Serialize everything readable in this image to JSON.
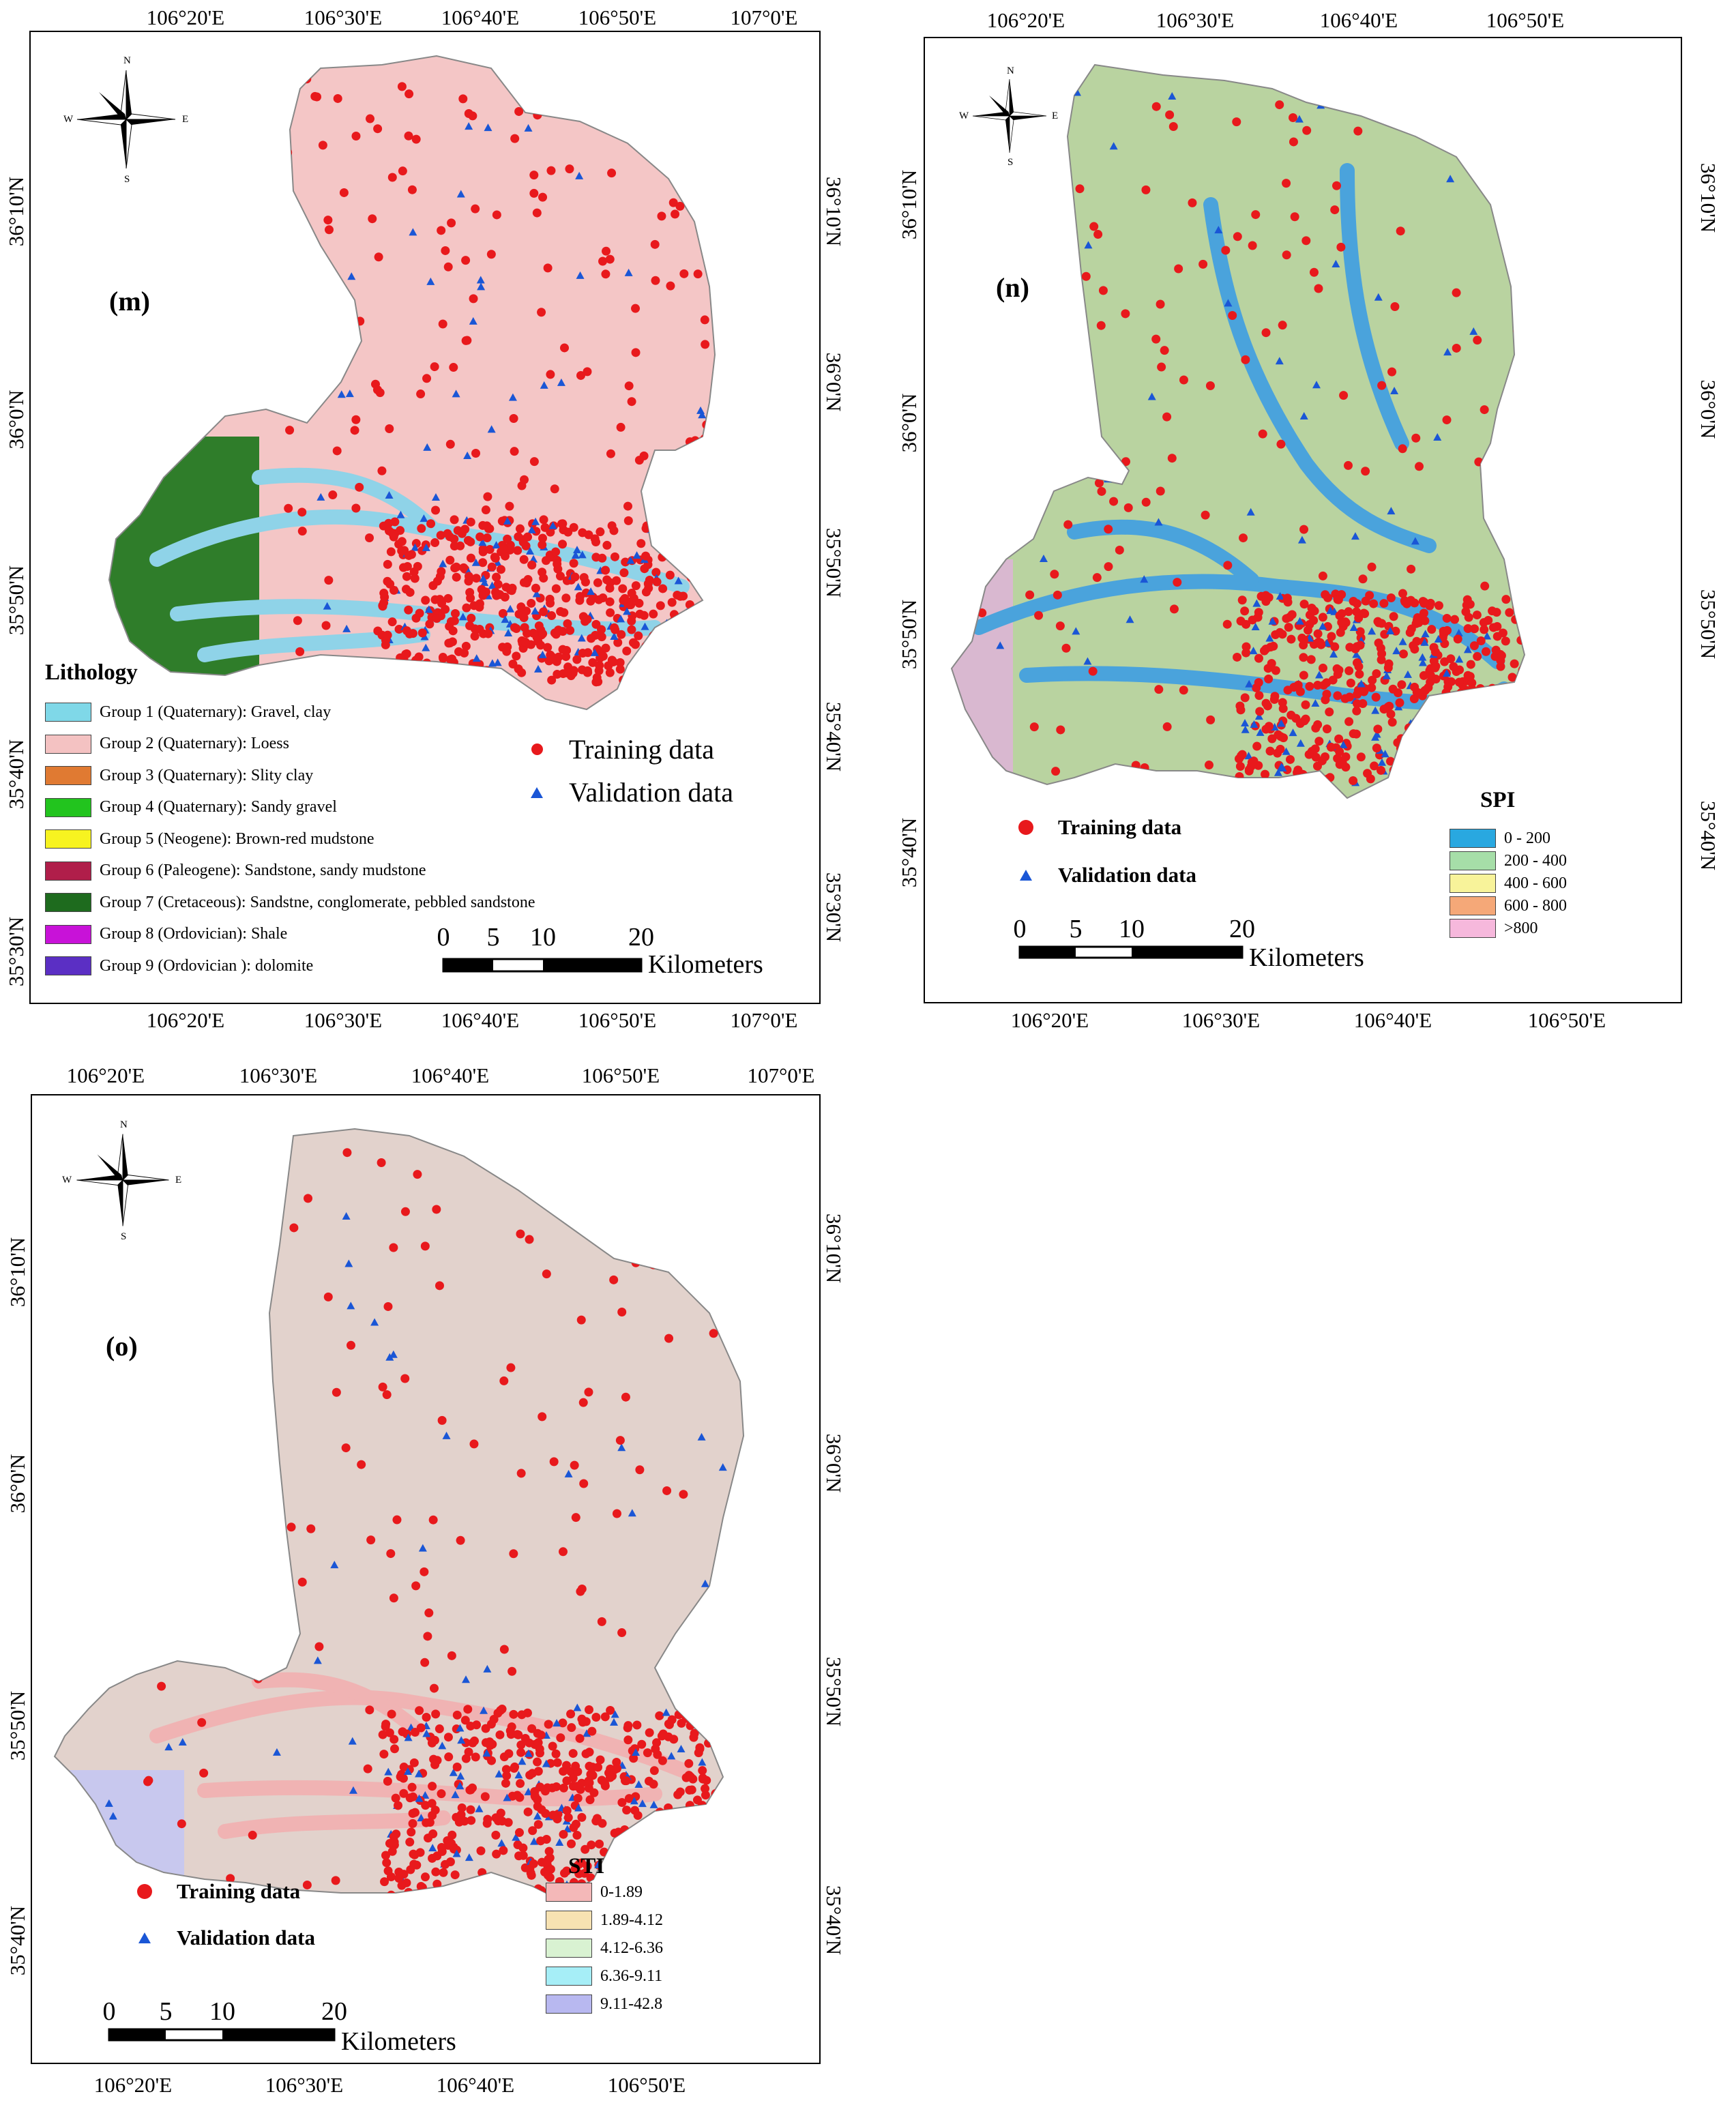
{
  "points_legend": {
    "training": "Training data",
    "validation": "Validation data"
  },
  "compass": {
    "n": "N",
    "s": "S",
    "e": "E",
    "w": "W"
  },
  "scale": {
    "ticks": [
      "0",
      "5",
      "10",
      "20"
    ],
    "unit": "Kilometers"
  },
  "panels": {
    "m": {
      "tag": "(m)",
      "lon": [
        "106°20'E",
        "106°30'E",
        "106°40'E",
        "106°50'E",
        "107°0'E"
      ],
      "lat": [
        "36°10'N",
        "36°0'N",
        "35°50'N",
        "35°40'N",
        "35°30'N"
      ],
      "legend_title": "Lithology",
      "legend": [
        {
          "label": "Group 1 (Quaternary): Gravel, clay",
          "color": "#7fd8e8"
        },
        {
          "label": "Group 2 (Quaternary): Loess",
          "color": "#f4c2c2"
        },
        {
          "label": "Group 3 (Quaternary): Slity clay",
          "color": "#e07a32"
        },
        {
          "label": "Group 4 (Quaternary): Sandy gravel",
          "color": "#22c41e"
        },
        {
          "label": "Group 5 (Neogene): Brown-red mudstone",
          "color": "#f7f320"
        },
        {
          "label": "Group 6 (Paleogene): Sandstone, sandy mudstone",
          "color": "#b01e4a"
        },
        {
          "label": "Group 7 (Cretaceous): Sandstne, conglomerate, pebbled sandstone",
          "color": "#1e6b1e"
        },
        {
          "label": "Group 8 (Ordovician): Shale",
          "color": "#c812d8"
        },
        {
          "label": "Group 9 (Ordovician ): dolomite",
          "color": "#5b2fc4"
        }
      ]
    },
    "n": {
      "tag": "(n)",
      "lon": [
        "106°20'E",
        "106°30'E",
        "106°40'E",
        "106°50'E"
      ],
      "lat": [
        "36°10'N",
        "36°0'N",
        "35°50'N",
        "35°40'N"
      ],
      "legend_title": "SPI",
      "legend": [
        {
          "label": "0 - 200",
          "color": "#29a8e0"
        },
        {
          "label": "200 - 400",
          "color": "#a6dea8"
        },
        {
          "label": "400 - 600",
          "color": "#f8f39a"
        },
        {
          "label": "600 - 800",
          "color": "#f5a878"
        },
        {
          "label": ">800",
          "color": "#f6b8dc"
        }
      ]
    },
    "o": {
      "tag": "(o)",
      "lon": [
        "106°20'E",
        "106°30'E",
        "106°40'E",
        "106°50'E",
        "107°0'E"
      ],
      "lat": [
        "36°10'N",
        "36°0'N",
        "35°50'N",
        "35°40'N"
      ],
      "legend_title": "STI",
      "legend": [
        {
          "label": "0-1.89",
          "color": "#f4b8b8"
        },
        {
          "label": "1.89-4.12",
          "color": "#f7e2b2"
        },
        {
          "label": "4.12-6.36",
          "color": "#d9f2d2"
        },
        {
          "label": "6.36-9.11",
          "color": "#a6eef7"
        },
        {
          "label": "9.11-42.8",
          "color": "#b8b8f0"
        }
      ]
    }
  },
  "colors": {
    "training": "#e8191c",
    "validation": "#1a56d6",
    "river": "#8fd3e8",
    "loess": "#f4c6c6",
    "cretaceous": "#2f7d2a",
    "spi_base": "#b9d3a0",
    "sti_base": "#e2d2cc"
  }
}
